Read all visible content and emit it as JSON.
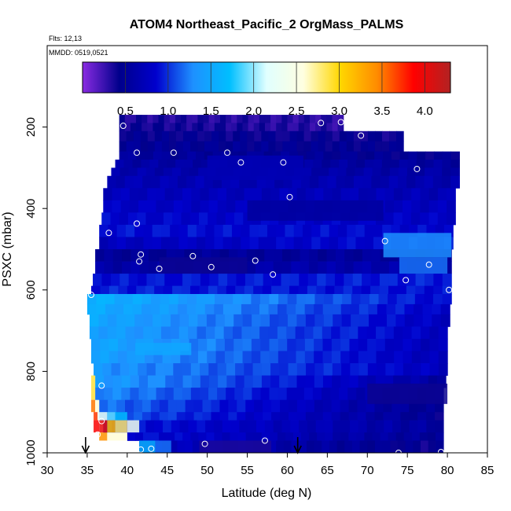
{
  "chart_data": {
    "type": "heatmap",
    "title": "ATOM4 Northeast_Pacific_2 OrgMass_PALMS",
    "annotations": [
      "Flts: 12,13",
      "MMDD: 0519,0521"
    ],
    "xlabel": "Latitude (deg N)",
    "ylabel": "PSXC (mbar)",
    "xlim": [
      30,
      85
    ],
    "ylim": [
      1000,
      0
    ],
    "x_ticks": [
      "30",
      "35",
      "40",
      "45",
      "50",
      "55",
      "60",
      "65",
      "70",
      "75",
      "80",
      "85"
    ],
    "y_ticks": [
      "200",
      "400",
      "600",
      "800",
      "1000"
    ],
    "colorbar": {
      "range": [
        0,
        4.3
      ],
      "ticks": [
        "0.5",
        "1.0",
        "1.5",
        "2.0",
        "2.5",
        "3.0",
        "3.5",
        "4.0"
      ],
      "colors": [
        "#8a2be2",
        "#00008b",
        "#0000cd",
        "#1e90ff",
        "#00bfff",
        "#e0ffff",
        "#ffffe0",
        "#ffd700",
        "#ff8c00",
        "#ff0000",
        "#b22222"
      ]
    },
    "colorbar_position": "top",
    "layers": [
      {
        "p": [
          170,
          190
        ],
        "x": [
          39.0,
          67.0
        ],
        "v": [
          0.35,
          0.3
        ]
      },
      {
        "p": [
          190,
          210
        ],
        "x": [
          39.0,
          67.0
        ],
        "v": [
          0.4,
          0.3
        ]
      },
      {
        "p": [
          210,
          235
        ],
        "x": [
          39.0,
          74.5
        ],
        "v": [
          0.45,
          0.4
        ]
      },
      {
        "p": [
          235,
          260
        ],
        "x": [
          39.0,
          74.5
        ],
        "v": [
          0.5,
          0.45
        ]
      },
      {
        "p": [
          260,
          280
        ],
        "x": [
          39.0,
          81.5
        ],
        "v": [
          0.55,
          0.45
        ]
      },
      {
        "p": [
          280,
          300
        ],
        "x": [
          38.5,
          81.5
        ],
        "v": [
          0.6,
          0.55
        ]
      },
      {
        "p": [
          300,
          320
        ],
        "x": [
          38.0,
          81.5
        ],
        "v": [
          0.65,
          0.6
        ]
      },
      {
        "p": [
          320,
          350
        ],
        "x": [
          37.5,
          81.5
        ],
        "v": [
          0.7,
          0.65
        ]
      },
      {
        "p": [
          350,
          380
        ],
        "x": [
          37.0,
          81.0
        ],
        "v": [
          0.75,
          0.7
        ]
      },
      {
        "p": [
          380,
          410
        ],
        "x": [
          37.0,
          81.0
        ],
        "v": [
          0.8,
          0.75
        ]
      },
      {
        "p": [
          410,
          440
        ],
        "x": [
          36.8,
          81.0
        ],
        "v": [
          0.85,
          0.8
        ]
      },
      {
        "p": [
          440,
          470
        ],
        "x": [
          36.5,
          80.7
        ],
        "v": [
          0.9,
          0.85
        ]
      },
      {
        "p": [
          470,
          500
        ],
        "x": [
          36.5,
          80.7
        ],
        "v": [
          0.75,
          0.9
        ]
      },
      {
        "p": [
          500,
          530
        ],
        "x": [
          36.0,
          80.5
        ],
        "v": [
          0.5,
          0.55
        ]
      },
      {
        "p": [
          530,
          560
        ],
        "x": [
          36.0,
          80.5
        ],
        "v": [
          0.6,
          0.65
        ]
      },
      {
        "p": [
          560,
          590
        ],
        "x": [
          35.7,
          80.5
        ],
        "v": [
          0.9,
          0.95
        ]
      },
      {
        "p": [
          590,
          610
        ],
        "x": [
          35.5,
          80.5
        ],
        "v": [
          0.95,
          0.9
        ]
      },
      {
        "p": [
          610,
          635
        ],
        "x": [
          35.0,
          80.5
        ],
        "v": [
          1.6,
          0.85
        ]
      },
      {
        "p": [
          635,
          660
        ],
        "x": [
          35.0,
          80.3
        ],
        "v": [
          1.55,
          0.8
        ]
      },
      {
        "p": [
          660,
          690
        ],
        "x": [
          35.3,
          80.3
        ],
        "v": [
          1.5,
          0.75
        ]
      },
      {
        "p": [
          690,
          720
        ],
        "x": [
          35.3,
          80.0
        ],
        "v": [
          1.45,
          0.75
        ]
      },
      {
        "p": [
          720,
          750
        ],
        "x": [
          35.5,
          80.0
        ],
        "v": [
          1.5,
          0.7
        ]
      },
      {
        "p": [
          750,
          780
        ],
        "x": [
          35.5,
          80.0
        ],
        "v": [
          1.45,
          0.7
        ]
      },
      {
        "p": [
          780,
          810
        ],
        "x": [
          35.8,
          80.0
        ],
        "v": [
          1.35,
          0.75
        ]
      },
      {
        "p": [
          810,
          840
        ],
        "x": [
          36.0,
          79.8
        ],
        "v": [
          1.4,
          0.55
        ]
      },
      {
        "p": [
          840,
          870
        ],
        "x": [
          36.0,
          79.5
        ],
        "v": [
          1.3,
          0.5
        ]
      },
      {
        "p": [
          870,
          900
        ],
        "x": [
          36.5,
          79.5
        ],
        "v": [
          1.2,
          0.45
        ]
      },
      {
        "p": [
          900,
          920
        ],
        "x": [
          36.5,
          79.5
        ],
        "v": [
          1.15,
          0.45
        ]
      },
      {
        "p": [
          920,
          950
        ],
        "x": [
          37.0,
          79.5
        ],
        "v": [
          0.95,
          0.55
        ]
      },
      {
        "p": [
          950,
          970
        ],
        "x": [
          40.0,
          79.5
        ],
        "v": [
          0.9,
          0.5
        ]
      },
      {
        "p": [
          970,
          1000
        ],
        "x": [
          41.5,
          79.5
        ],
        "v": [
          0.8,
          0.4
        ]
      }
    ],
    "patches": [
      {
        "x": [
          35.5,
          36.0
        ],
        "p": [
          810,
          870
        ],
        "v": 2.9
      },
      {
        "x": [
          35.5,
          36.0
        ],
        "p": [
          870,
          900
        ],
        "v": 3.5
      },
      {
        "x": [
          36.0,
          36.5
        ],
        "p": [
          870,
          900
        ],
        "v": 2.6
      },
      {
        "x": [
          35.8,
          36.3
        ],
        "p": [
          900,
          920
        ],
        "v": 3.7
      },
      {
        "x": [
          36.3,
          37.5
        ],
        "p": [
          900,
          920
        ],
        "v": 2.3
      },
      {
        "x": [
          37.5,
          38.5
        ],
        "p": [
          900,
          920
        ],
        "v": 1.9
      },
      {
        "x": [
          38.5,
          40.0
        ],
        "p": [
          900,
          920
        ],
        "v": 1.7
      },
      {
        "x": [
          35.8,
          36.5
        ],
        "p": [
          920,
          950
        ],
        "v": 3.9
      },
      {
        "x": [
          36.5,
          37.5
        ],
        "p": [
          920,
          950
        ],
        "v": 4.0
      },
      {
        "x": [
          37.5,
          38.5
        ],
        "p": [
          920,
          950
        ],
        "v": 3.2
      },
      {
        "x": [
          38.5,
          40.0
        ],
        "p": [
          920,
          950
        ],
        "v": 2.8
      },
      {
        "x": [
          40.0,
          41.5
        ],
        "p": [
          920,
          950
        ],
        "v": 2.4
      },
      {
        "x": [
          36.5,
          37.5
        ],
        "p": [
          950,
          970
        ],
        "v": 3.4
      },
      {
        "x": [
          37.5,
          40.0
        ],
        "p": [
          950,
          970
        ],
        "v": 2.6
      },
      {
        "x": [
          41.5,
          43.5
        ],
        "p": [
          970,
          1000
        ],
        "v": 1.6
      },
      {
        "x": [
          43.5,
          45.5
        ],
        "p": [
          970,
          1000
        ],
        "v": 1.2
      },
      {
        "x": [
          49.0,
          58.0
        ],
        "p": [
          970,
          1000
        ],
        "v": 0.35
      },
      {
        "x": [
          44.0,
          55.0
        ],
        "p": [
          520,
          560
        ],
        "v": 0.4
      },
      {
        "x": [
          41.0,
          48.0
        ],
        "p": [
          730,
          760
        ],
        "v": 1.5
      },
      {
        "x": [
          72.0,
          80.5
        ],
        "p": [
          460,
          520
        ],
        "v": 1.3
      },
      {
        "x": [
          74.0,
          80.0
        ],
        "p": [
          520,
          560
        ],
        "v": 1.2
      },
      {
        "x": [
          70.0,
          80.0
        ],
        "p": [
          830,
          880
        ],
        "v": 0.4
      },
      {
        "x": [
          55.0,
          72.0
        ],
        "p": [
          380,
          430
        ],
        "v": 0.55
      },
      {
        "x": [
          50.0,
          62.0
        ],
        "p": [
          270,
          330
        ],
        "v": 0.7
      }
    ],
    "points": [
      [
        39.5,
        197
      ],
      [
        41.2,
        263
      ],
      [
        45.8,
        263
      ],
      [
        52.5,
        263
      ],
      [
        54.2,
        287
      ],
      [
        59.5,
        287
      ],
      [
        64.2,
        190
      ],
      [
        66.7,
        188
      ],
      [
        69.2,
        221
      ],
      [
        76.2,
        303
      ],
      [
        82.0,
        285
      ],
      [
        60.3,
        372
      ],
      [
        41.2,
        437
      ],
      [
        37.7,
        460
      ],
      [
        41.7,
        513
      ],
      [
        41.5,
        530
      ],
      [
        44.0,
        548
      ],
      [
        48.2,
        517
      ],
      [
        50.5,
        544
      ],
      [
        56.0,
        528
      ],
      [
        58.2,
        562
      ],
      [
        72.2,
        480
      ],
      [
        77.7,
        538
      ],
      [
        74.8,
        576
      ],
      [
        80.2,
        600
      ],
      [
        35.5,
        612
      ],
      [
        36.8,
        835
      ],
      [
        36.8,
        922
      ],
      [
        36.3,
        955
      ],
      [
        41.7,
        992
      ],
      [
        43.0,
        990
      ],
      [
        49.7,
        978
      ],
      [
        57.2,
        970
      ],
      [
        73.9,
        1000
      ],
      [
        79.2,
        998
      ]
    ],
    "arrows": [
      34.8,
      61.3
    ]
  }
}
